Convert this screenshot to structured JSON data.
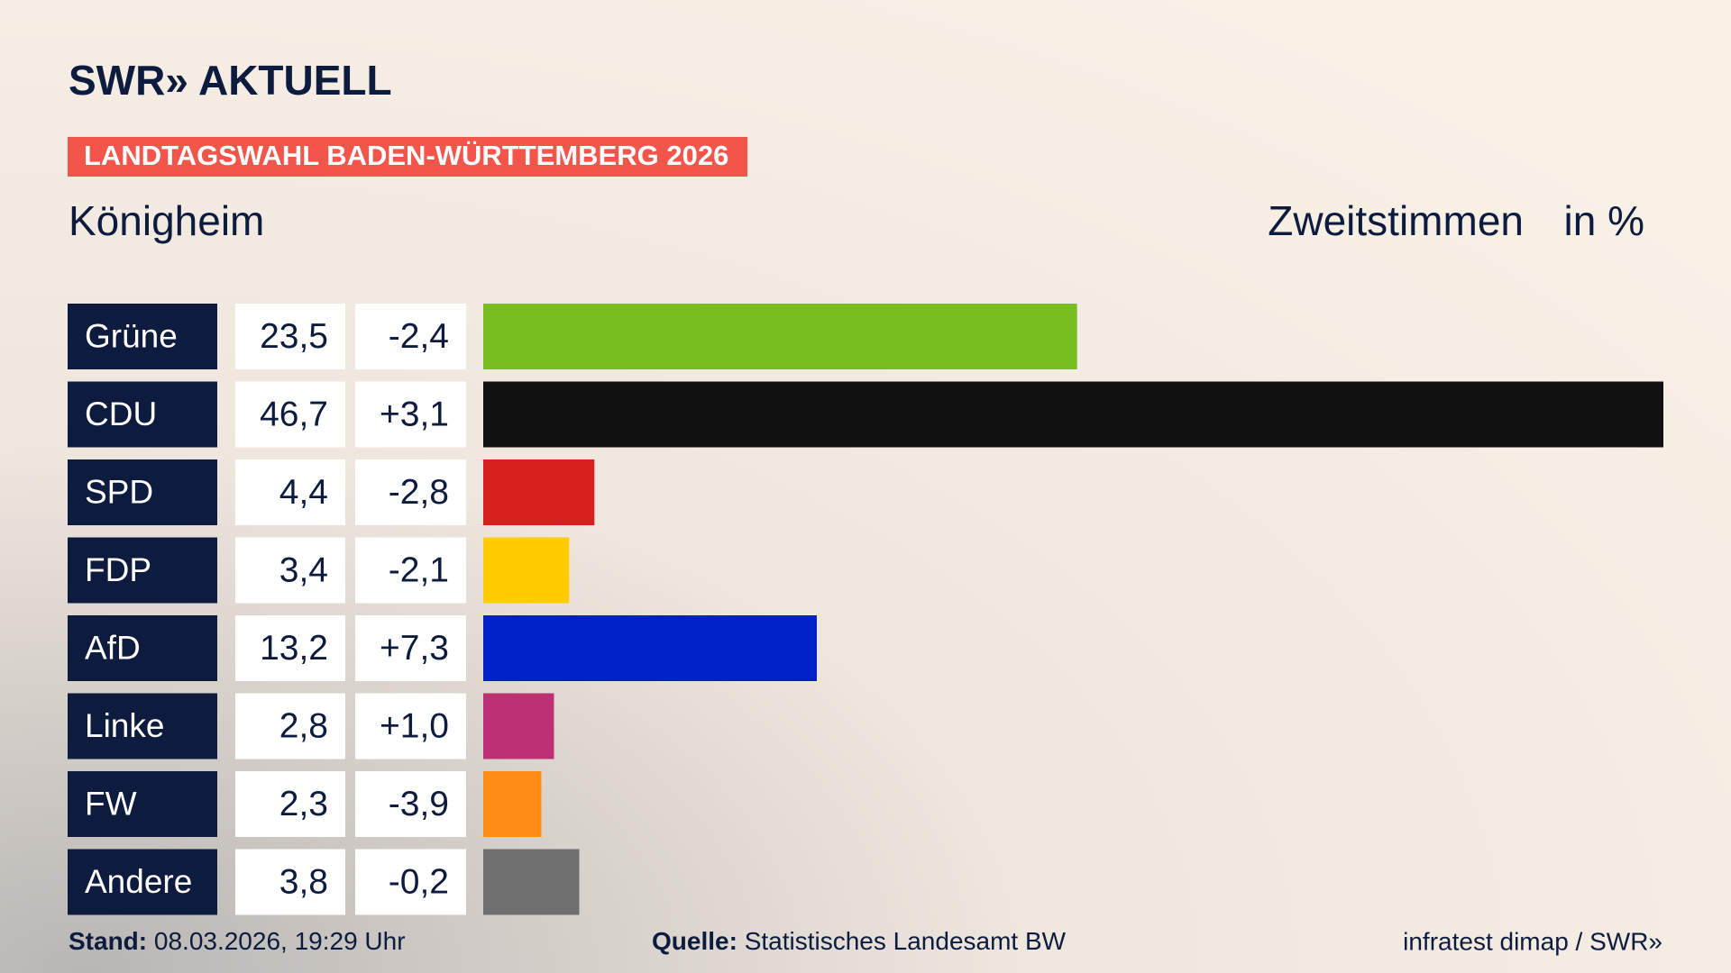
{
  "chart_data": {
    "type": "bar",
    "brand": "SWR» AKTUELL",
    "kicker": "LANDTAGSWAHL BADEN-WÜRTTEMBERG 2026",
    "title": "Königheim",
    "subtitle": "Zweitstimmen",
    "unit": "in %",
    "categories": [
      "Grüne",
      "CDU",
      "SPD",
      "FDP",
      "AfD",
      "Linke",
      "FW",
      "Andere"
    ],
    "values": [
      23.5,
      46.7,
      4.4,
      3.4,
      13.2,
      2.8,
      2.3,
      3.8
    ],
    "value_labels": [
      "23,5",
      "46,7",
      "4,4",
      "3,4",
      "13,2",
      "2,8",
      "2,3",
      "3,8"
    ],
    "changes": [
      -2.4,
      3.1,
      -2.8,
      -2.1,
      7.3,
      1.0,
      -3.9,
      -0.2
    ],
    "change_labels": [
      "-2,4",
      "+3,1",
      "-2,8",
      "-2,1",
      "+7,3",
      "+1,0",
      "-3,9",
      "-0,2"
    ],
    "colors": [
      "#78be20",
      "#111111",
      "#d7201f",
      "#ffcc00",
      "#0021c8",
      "#be3075",
      "#ff8c14",
      "#6f6f6f"
    ],
    "footer": {
      "date_label": "Stand:",
      "date": "08.03.2026, 19:29 Uhr",
      "source_label": "Quelle:",
      "source": "Statistisches Landesamt BW",
      "credit": "infratest dimap / SWR»"
    }
  }
}
